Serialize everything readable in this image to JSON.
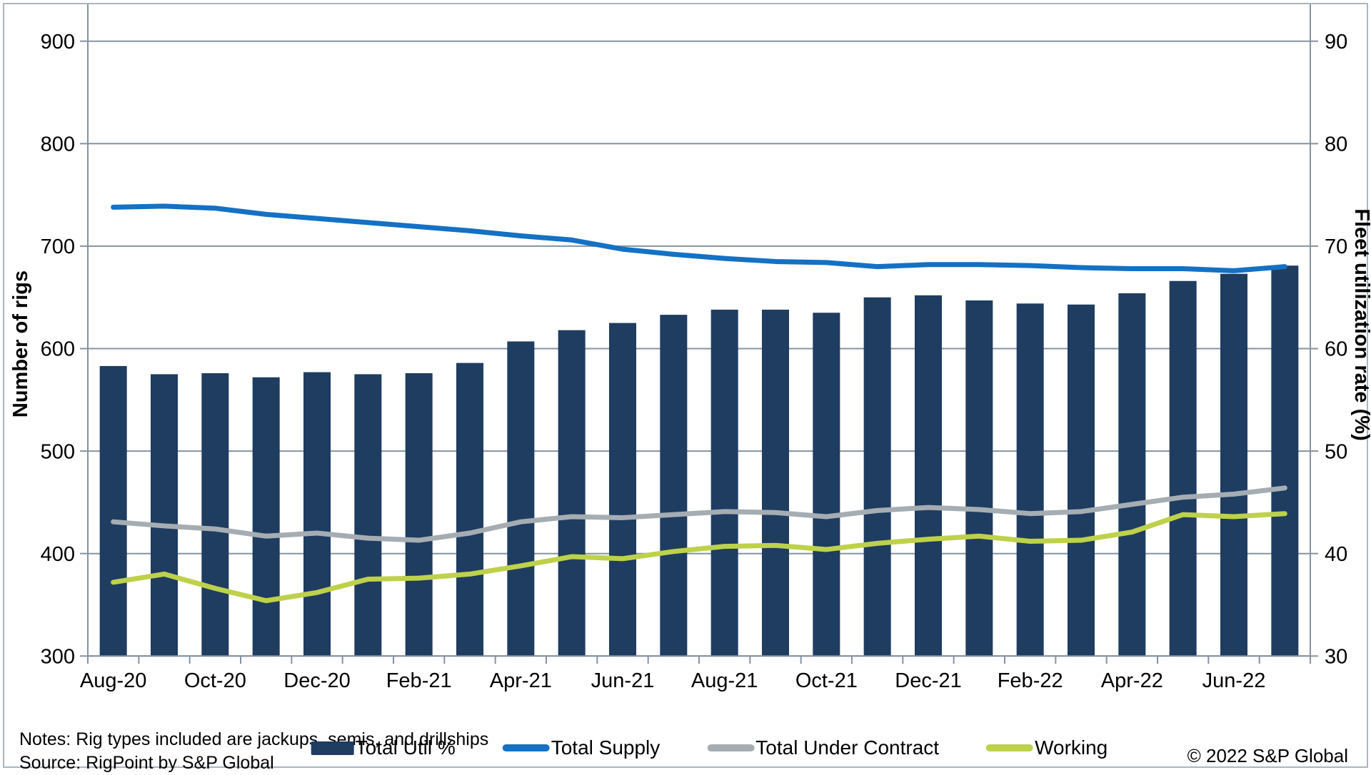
{
  "chart_data": {
    "type": "combo-bar-line",
    "title": "",
    "months": [
      "Aug-20",
      "Sep-20",
      "Oct-20",
      "Nov-20",
      "Dec-20",
      "Jan-21",
      "Feb-21",
      "Mar-21",
      "Apr-21",
      "May-21",
      "Jun-21",
      "Jul-21",
      "Aug-21",
      "Sep-21",
      "Oct-21",
      "Nov-21",
      "Dec-21",
      "Jan-22",
      "Feb-22",
      "Mar-22",
      "Apr-22",
      "May-22",
      "Jun-22",
      "Jul-22"
    ],
    "x_labels_shown": [
      "Aug-20",
      "Oct-20",
      "Dec-20",
      "Feb-21",
      "Apr-21",
      "Jun-21",
      "Aug-21",
      "Oct-21",
      "Dec-21",
      "Feb-22",
      "Apr-22",
      "Jun-22"
    ],
    "label_every_n_months": 2,
    "grid": true,
    "legend_position": "bottom",
    "left_axis": {
      "title": "Number of rigs",
      "min": 300,
      "max": 900,
      "step": 100,
      "tick_labels": [
        "300",
        "400",
        "500",
        "600",
        "700",
        "800",
        "900"
      ]
    },
    "right_axis": {
      "title": "Fleet utilization rate (%)",
      "min": 30,
      "max": 90,
      "step": 10,
      "tick_labels": [
        "30",
        "40",
        "50",
        "60",
        "70",
        "80",
        "90"
      ]
    },
    "series": [
      {
        "name": "Total Util %",
        "type": "bar",
        "axis": "right",
        "color": "#1f3c61",
        "values": [
          58.3,
          57.5,
          57.6,
          57.2,
          57.7,
          57.5,
          57.6,
          58.6,
          60.7,
          61.8,
          62.5,
          63.3,
          63.8,
          63.8,
          63.5,
          65.0,
          65.2,
          64.7,
          64.4,
          64.3,
          65.4,
          66.6,
          67.3,
          68.1
        ]
      },
      {
        "name": "Total Supply",
        "type": "line",
        "axis": "left",
        "color": "#1471c4",
        "values": [
          738,
          739,
          737,
          731,
          727,
          723,
          719,
          715,
          710,
          706,
          697,
          692,
          688,
          685,
          684,
          680,
          682,
          682,
          681,
          679,
          678,
          678,
          676,
          680
        ]
      },
      {
        "name": "Total Under Contract",
        "type": "line",
        "axis": "left",
        "color": "#a5adb3",
        "values": [
          431,
          427,
          424,
          417,
          420,
          415,
          413,
          420,
          431,
          436,
          435,
          438,
          441,
          440,
          436,
          442,
          445,
          443,
          439,
          441,
          448,
          455,
          458,
          464
        ]
      },
      {
        "name": "Working",
        "type": "line",
        "axis": "left",
        "color": "#bed14a",
        "values": [
          372,
          380,
          366,
          354,
          362,
          375,
          376,
          380,
          388,
          397,
          395,
          402,
          407,
          408,
          404,
          410,
          414,
          417,
          412,
          413,
          421,
          438,
          436,
          439
        ]
      }
    ]
  },
  "footer": {
    "notes": "Notes: Rig types included are jackups, semis, and drillships",
    "source": "Source: RigPoint by S&P Global",
    "copyright": "© 2022 S&P Global"
  },
  "style": {
    "grid_color": "#8593a2",
    "axis_color": "#8593a2",
    "text_color": "#000000",
    "frame_color": "#aab6c1",
    "background": "#ffffff"
  }
}
